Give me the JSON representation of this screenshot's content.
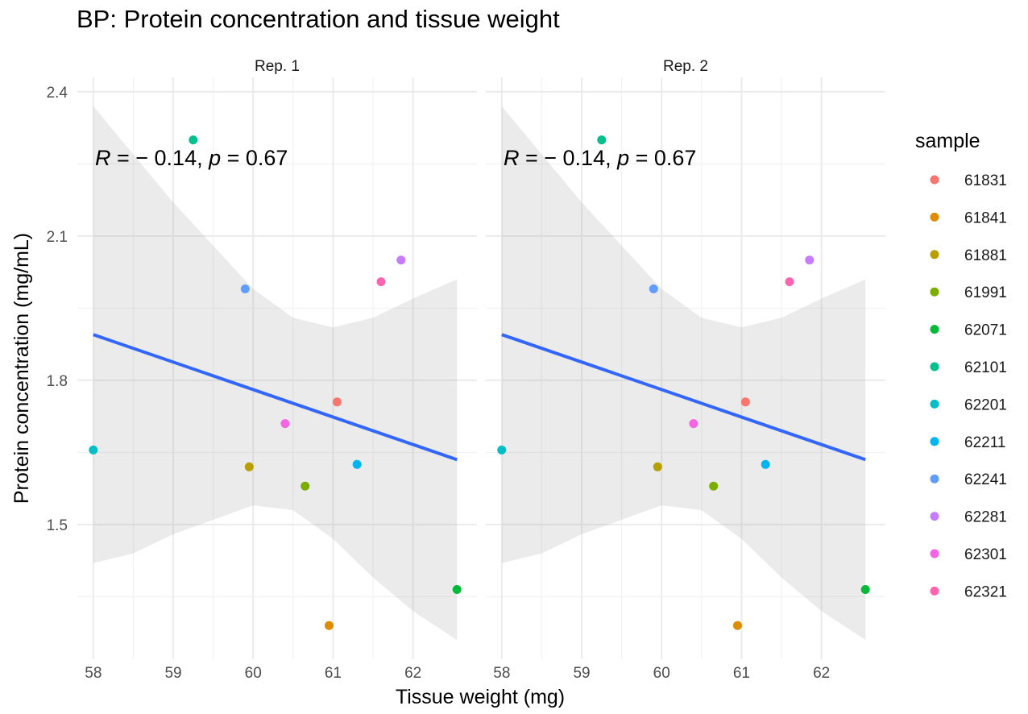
{
  "chart_data": {
    "type": "scatter",
    "title": "BP: Protein concentration and tissue weight",
    "xlabel": "Tissue weight (mg)",
    "ylabel": "Protein concentration (mg/mL)",
    "xlim": [
      57.8,
      62.8
    ],
    "ylim": [
      1.22,
      2.43
    ],
    "x_ticks": [
      "58",
      "59",
      "60",
      "61",
      "62"
    ],
    "y_ticks": [
      "1.5",
      "1.8",
      "2.1",
      "2.4"
    ],
    "grid": true,
    "facets": [
      "Rep. 1",
      "Rep. 2"
    ],
    "annotation": {
      "R_symbol": "R",
      "R_value": "= − 0.14, ",
      "p_symbol": "p",
      "p_value": "= 0.67"
    },
    "legend": {
      "title": "sample",
      "position": "right"
    },
    "points": [
      {
        "sample": "61831",
        "x": 61.05,
        "y": 1.755,
        "color": "#F8766D"
      },
      {
        "sample": "61841",
        "x": 60.95,
        "y": 1.29,
        "color": "#DE8C00"
      },
      {
        "sample": "61881",
        "x": 59.95,
        "y": 1.62,
        "color": "#B79F00"
      },
      {
        "sample": "61991",
        "x": 60.65,
        "y": 1.58,
        "color": "#7CAE00"
      },
      {
        "sample": "62071",
        "x": 62.55,
        "y": 1.365,
        "color": "#00BA38"
      },
      {
        "sample": "62101",
        "x": 59.25,
        "y": 2.3,
        "color": "#00C08B"
      },
      {
        "sample": "62201",
        "x": 58.0,
        "y": 1.655,
        "color": "#00BFC4"
      },
      {
        "sample": "62211",
        "x": 61.3,
        "y": 1.625,
        "color": "#00B4F0"
      },
      {
        "sample": "62241",
        "x": 59.9,
        "y": 1.99,
        "color": "#619CFF"
      },
      {
        "sample": "62281",
        "x": 61.85,
        "y": 2.05,
        "color": "#C77CFF"
      },
      {
        "sample": "62301",
        "x": 60.4,
        "y": 1.71,
        "color": "#F564E3"
      },
      {
        "sample": "62321",
        "x": 61.6,
        "y": 2.005,
        "color": "#FF64B0"
      }
    ],
    "fit_line": {
      "method": "linear",
      "color": "#3366FF",
      "x": [
        58.0,
        62.55
      ],
      "y": [
        1.895,
        1.635
      ]
    },
    "confidence_band": {
      "color": "#EBEBEB",
      "x": [
        58.0,
        58.5,
        59.0,
        59.5,
        60.0,
        60.5,
        61.0,
        61.5,
        62.0,
        62.55
      ],
      "upper": [
        2.37,
        2.27,
        2.17,
        2.08,
        1.99,
        1.93,
        1.91,
        1.93,
        1.97,
        2.01
      ],
      "lower": [
        1.42,
        1.44,
        1.48,
        1.51,
        1.54,
        1.53,
        1.47,
        1.39,
        1.32,
        1.26
      ]
    }
  }
}
